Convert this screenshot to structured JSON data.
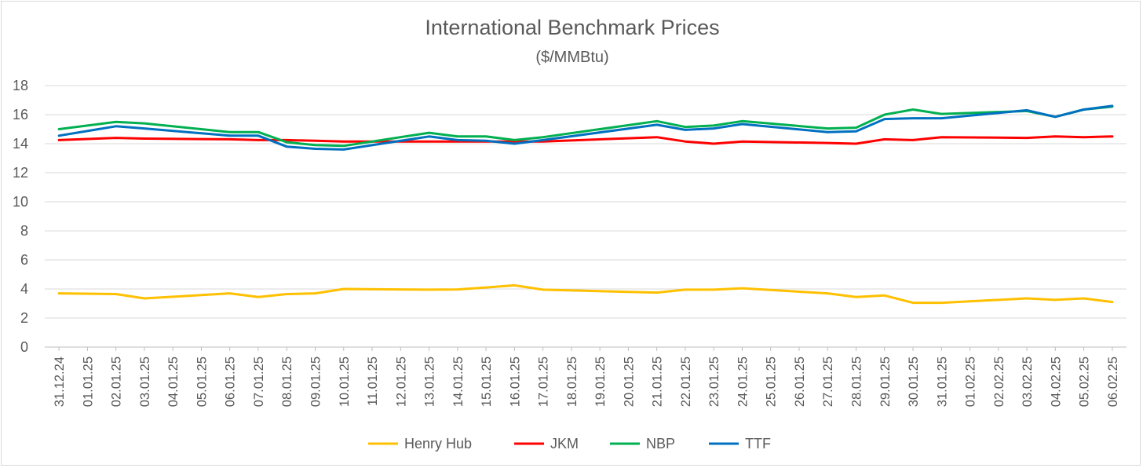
{
  "chart_data": {
    "type": "line",
    "title": "International Benchmark Prices",
    "subtitle": "($/MMBtu)",
    "xlabel": "",
    "ylabel": "",
    "ylim": [
      0,
      18
    ],
    "yticks": [
      0,
      2,
      4,
      6,
      8,
      10,
      12,
      14,
      16,
      18
    ],
    "grid": true,
    "legend_position": "bottom",
    "categories": [
      "31.12.24",
      "01.01.25",
      "02.01.25",
      "03.01.25",
      "04.01.25",
      "05.01.25",
      "06.01.25",
      "07.01.25",
      "08.01.25",
      "09.01.25",
      "10.01.25",
      "11.01.25",
      "12.01.25",
      "13.01.25",
      "14.01.25",
      "15.01.25",
      "16.01.25",
      "17.01.25",
      "18.01.25",
      "19.01.25",
      "20.01.25",
      "21.01.25",
      "22.01.25",
      "23.01.25",
      "24.01.25",
      "25.01.25",
      "26.01.25",
      "27.01.25",
      "28.01.25",
      "29.01.25",
      "30.01.25",
      "31.01.25",
      "01.02.25",
      "02.02.25",
      "03.02.25",
      "04.02.25",
      "05.02.25",
      "06.02.25"
    ],
    "series": [
      {
        "name": "Henry Hub",
        "color": "#ffc000",
        "points": [
          [
            0,
            3.7
          ],
          [
            2,
            3.65
          ],
          [
            3,
            3.35
          ],
          [
            6,
            3.7
          ],
          [
            7,
            3.45
          ],
          [
            8,
            3.65
          ],
          [
            9,
            3.7
          ],
          [
            10,
            4.0
          ],
          [
            13,
            3.95
          ],
          [
            14,
            3.97
          ],
          [
            15,
            4.1
          ],
          [
            16,
            4.25
          ],
          [
            17,
            3.95
          ],
          [
            21,
            3.75
          ],
          [
            22,
            3.95
          ],
          [
            23,
            3.95
          ],
          [
            24,
            4.05
          ],
          [
            27,
            3.7
          ],
          [
            28,
            3.45
          ],
          [
            29,
            3.55
          ],
          [
            30,
            3.05
          ],
          [
            31,
            3.05
          ],
          [
            34,
            3.35
          ],
          [
            35,
            3.25
          ],
          [
            36,
            3.35
          ],
          [
            37,
            3.1
          ]
        ]
      },
      {
        "name": "JKM",
        "color": "#ff0000",
        "points": [
          [
            0,
            14.25
          ],
          [
            2,
            14.4
          ],
          [
            3,
            14.35
          ],
          [
            6,
            14.3
          ],
          [
            7,
            14.25
          ],
          [
            8,
            14.25
          ],
          [
            9,
            14.2
          ],
          [
            10,
            14.15
          ],
          [
            13,
            14.15
          ],
          [
            14,
            14.15
          ],
          [
            15,
            14.15
          ],
          [
            16,
            14.15
          ],
          [
            17,
            14.15
          ],
          [
            21,
            14.45
          ],
          [
            22,
            14.15
          ],
          [
            23,
            14.0
          ],
          [
            24,
            14.15
          ],
          [
            27,
            14.05
          ],
          [
            28,
            14.0
          ],
          [
            29,
            14.3
          ],
          [
            30,
            14.25
          ],
          [
            31,
            14.45
          ],
          [
            34,
            14.4
          ],
          [
            35,
            14.5
          ],
          [
            36,
            14.45
          ],
          [
            37,
            14.5
          ]
        ]
      },
      {
        "name": "NBP",
        "color": "#00b050",
        "points": [
          [
            0,
            15.0
          ],
          [
            2,
            15.5
          ],
          [
            3,
            15.4
          ],
          [
            6,
            14.8
          ],
          [
            7,
            14.8
          ],
          [
            8,
            14.1
          ],
          [
            9,
            13.9
          ],
          [
            10,
            13.85
          ],
          [
            13,
            14.75
          ],
          [
            14,
            14.5
          ],
          [
            15,
            14.5
          ],
          [
            16,
            14.25
          ],
          [
            17,
            14.45
          ],
          [
            21,
            15.55
          ],
          [
            22,
            15.15
          ],
          [
            23,
            15.25
          ],
          [
            24,
            15.55
          ],
          [
            27,
            15.05
          ],
          [
            28,
            15.1
          ],
          [
            29,
            16.0
          ],
          [
            30,
            16.35
          ],
          [
            31,
            16.05
          ],
          [
            34,
            16.25
          ],
          [
            35,
            15.85
          ],
          [
            36,
            16.35
          ],
          [
            37,
            16.55
          ]
        ]
      },
      {
        "name": "TTF",
        "color": "#0070c0",
        "points": [
          [
            0,
            14.55
          ],
          [
            2,
            15.2
          ],
          [
            3,
            15.05
          ],
          [
            6,
            14.55
          ],
          [
            7,
            14.55
          ],
          [
            8,
            13.8
          ],
          [
            9,
            13.65
          ],
          [
            10,
            13.6
          ],
          [
            13,
            14.5
          ],
          [
            14,
            14.25
          ],
          [
            15,
            14.2
          ],
          [
            16,
            14.0
          ],
          [
            17,
            14.25
          ],
          [
            21,
            15.3
          ],
          [
            22,
            14.95
          ],
          [
            23,
            15.05
          ],
          [
            24,
            15.35
          ],
          [
            27,
            14.8
          ],
          [
            28,
            14.85
          ],
          [
            29,
            15.7
          ],
          [
            30,
            15.75
          ],
          [
            31,
            15.75
          ],
          [
            34,
            16.3
          ],
          [
            35,
            15.85
          ],
          [
            36,
            16.35
          ],
          [
            37,
            16.6
          ]
        ]
      }
    ]
  }
}
